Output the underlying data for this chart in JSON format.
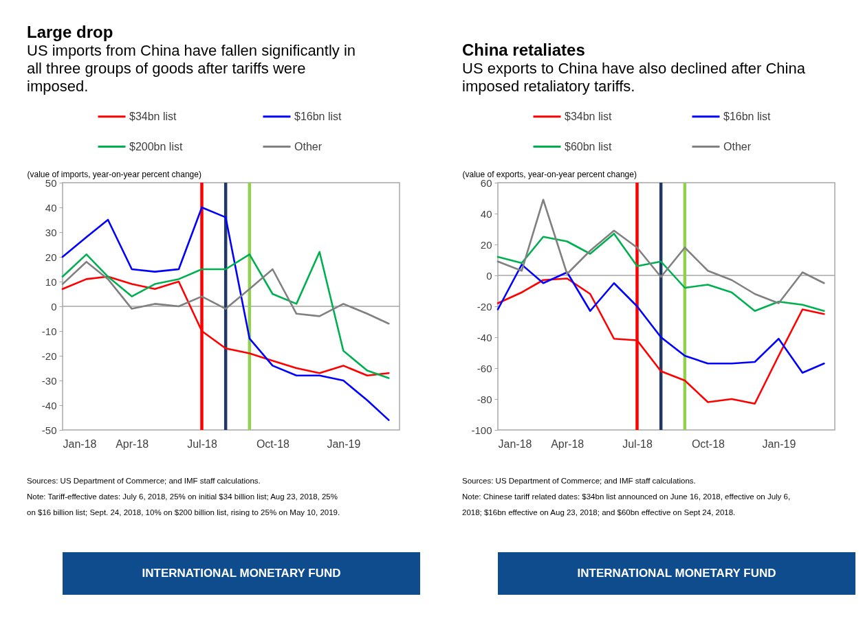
{
  "chart_data": [
    {
      "type": "line",
      "title": "Large drop",
      "subtitle": "US imports from China have fallen significantly in all three groups of goods after tariffs were imposed.",
      "ylabel": "(value of imports, year-on-year percent change)",
      "x": [
        "2018-01",
        "2018-02",
        "2018-03",
        "2018-04",
        "2018-05",
        "2018-06",
        "2018-07",
        "2018-08",
        "2018-09",
        "2018-10",
        "2018-11",
        "2018-12",
        "2019-01",
        "2019-02",
        "2019-03"
      ],
      "xlim": [
        "2018-01",
        "2019-03-15"
      ],
      "xticks": [
        {
          "value": "2018-01",
          "label": "Jan-18"
        },
        {
          "value": "2018-04",
          "label": "Apr-18"
        },
        {
          "value": "2018-07",
          "label": "Jul-18"
        },
        {
          "value": "2018-10",
          "label": "Oct-18"
        },
        {
          "value": "2019-01",
          "label": "Jan-19"
        }
      ],
      "ylim": [
        -50,
        50
      ],
      "yticks": [
        -50,
        -40,
        -30,
        -20,
        -10,
        0,
        10,
        20,
        30,
        40,
        50
      ],
      "legend": "top",
      "series": [
        {
          "name": "$34bn list",
          "color": "#ff0000",
          "values": [
            7,
            11,
            12,
            9,
            7,
            10,
            -10,
            -17,
            -19,
            -22,
            -25,
            -27,
            -24,
            -28,
            -27
          ]
        },
        {
          "name": "$16bn list",
          "color": "#0000ff",
          "values": [
            20,
            28,
            35,
            15,
            14,
            15,
            40,
            36,
            -13,
            -24,
            -28,
            -28,
            -30,
            -38,
            -46
          ]
        },
        {
          "name": "$200bn list",
          "color": "#00b050",
          "values": [
            12,
            21,
            12,
            4,
            9,
            11,
            15,
            15,
            21,
            5,
            1,
            22,
            -18,
            -26,
            -29
          ]
        },
        {
          "name": "Other",
          "color": "#808080",
          "values": [
            9,
            18,
            11,
            -1,
            1,
            0,
            4,
            -1,
            7,
            15,
            -3,
            -4,
            1,
            -3,
            -7
          ]
        }
      ],
      "ref_lines": [
        {
          "axis": "y",
          "value": 0,
          "color": "#a6a6a6"
        },
        {
          "axis": "x",
          "value": "2018-07",
          "color": "#ff0000"
        },
        {
          "axis": "x",
          "value": "2018-08",
          "color": "#1f3864"
        },
        {
          "axis": "x",
          "value": "2018-09",
          "color": "#92d050"
        }
      ],
      "annotations": [
        "Sources: US Department of Commerce; and IMF staff calculations.",
        "Note: Tariff-effective dates: July 6, 2018, 25% on initial $34 billion list; Aug 23, 2018, 25% on $16 billion list; Sept. 24, 2018, 10% on $200 billion list, rising to 25% on May 10, 2019.",
        "INTERNATIONAL MONETARY FUND"
      ]
    },
    {
      "type": "line",
      "title": "China retaliates",
      "subtitle": "US exports to China have also declined after China imposed retaliatory tariffs.",
      "ylabel": "(value of exports, year-on-year percent change)",
      "x": [
        "2018-01",
        "2018-02",
        "2018-03",
        "2018-04",
        "2018-05",
        "2018-06",
        "2018-07",
        "2018-08",
        "2018-09",
        "2018-10",
        "2018-11",
        "2018-12",
        "2019-01",
        "2019-02",
        "2019-03"
      ],
      "xlim": [
        "2018-01",
        "2019-03-15"
      ],
      "xticks": [
        {
          "value": "2018-01",
          "label": "Jan-18"
        },
        {
          "value": "2018-04",
          "label": "Apr-18"
        },
        {
          "value": "2018-07",
          "label": "Jul-18"
        },
        {
          "value": "2018-10",
          "label": "Oct-18"
        },
        {
          "value": "2019-01",
          "label": "Jan-19"
        }
      ],
      "ylim": [
        -100,
        60
      ],
      "yticks": [
        -100,
        -80,
        -60,
        -40,
        -20,
        0,
        20,
        40,
        60
      ],
      "legend": "top",
      "series": [
        {
          "name": "$34bn list",
          "color": "#ff0000",
          "values": [
            -18,
            -11,
            -3,
            -2,
            -12,
            -41,
            -42,
            -62,
            -68,
            -82,
            -80,
            -83,
            -52,
            -22,
            -25
          ]
        },
        {
          "name": "$16bn list",
          "color": "#0000ff",
          "values": [
            -22,
            7,
            -5,
            2,
            -23,
            -5,
            -20,
            -40,
            -52,
            -57,
            -57,
            -56,
            -41,
            -63,
            -57
          ]
        },
        {
          "name": "$60bn list",
          "color": "#00b050",
          "values": [
            12,
            8,
            25,
            22,
            14,
            27,
            6,
            9,
            -8,
            -6,
            -11,
            -23,
            -17,
            -19,
            -23
          ]
        },
        {
          "name": "Other",
          "color": "#808080",
          "values": [
            9,
            3,
            49,
            1,
            16,
            29,
            18,
            -1,
            18,
            3,
            -3,
            -12,
            -18,
            2,
            -5
          ]
        }
      ],
      "ref_lines": [
        {
          "axis": "y",
          "value": 0,
          "color": "#a6a6a6"
        },
        {
          "axis": "x",
          "value": "2018-07",
          "color": "#ff0000"
        },
        {
          "axis": "x",
          "value": "2018-08",
          "color": "#1f3864"
        },
        {
          "axis": "x",
          "value": "2018-09",
          "color": "#92d050"
        }
      ],
      "annotations": [
        "Sources: US Department of Commerce; and IMF staff calculations.",
        "Note: Chinese tariff related dates: $34bn list announced on June 16, 2018, effective on July 6, 2018; $16bn effective on Aug 23, 2018; and $60bn effective on Sept 24, 2018.",
        "INTERNATIONAL MONETARY FUND"
      ]
    }
  ]
}
